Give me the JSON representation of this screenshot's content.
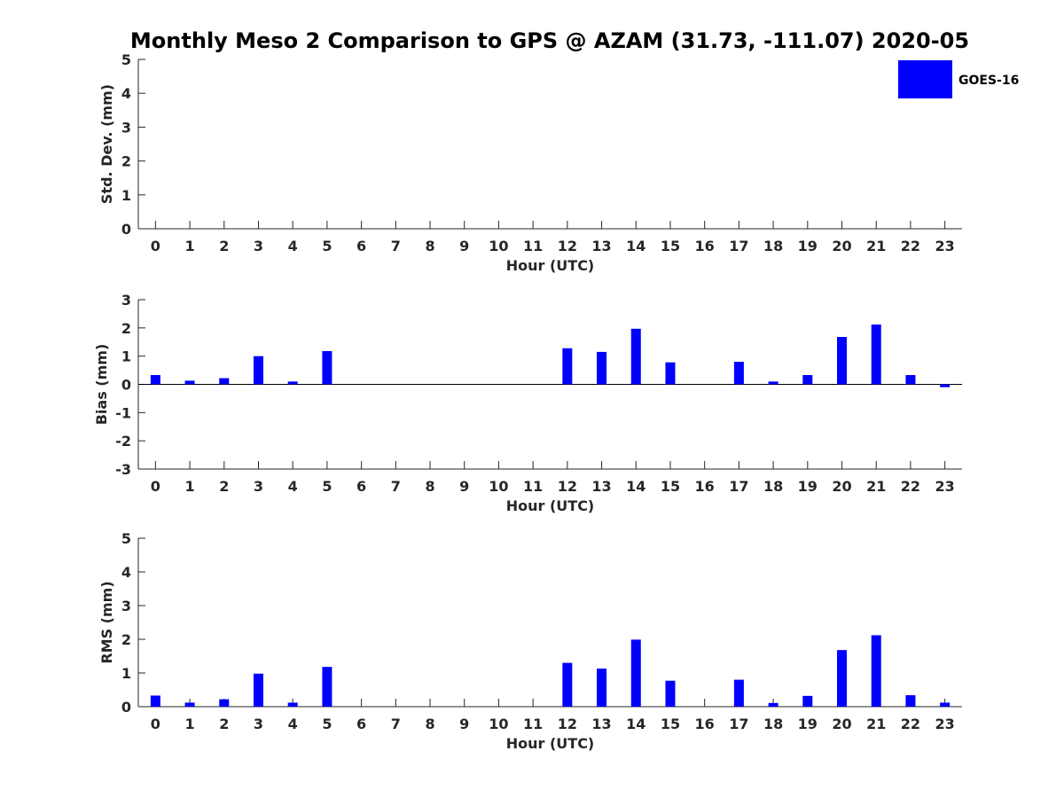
{
  "figure": {
    "title": "Monthly Meso 2 Comparison to GPS @ AZAM (31.73, -111.07) 2020-05",
    "legend": [
      {
        "label": "GOES-16",
        "color": "#0000ff"
      }
    ]
  },
  "chart_data": [
    {
      "type": "bar",
      "xlabel": "Hour (UTC)",
      "ylabel": "Std. Dev. (mm)",
      "ylim": [
        0,
        5
      ],
      "yticks": [
        0,
        1,
        2,
        3,
        4,
        5
      ],
      "categories": [
        0,
        1,
        2,
        3,
        4,
        5,
        6,
        7,
        8,
        9,
        10,
        11,
        12,
        13,
        14,
        15,
        16,
        17,
        18,
        19,
        20,
        21,
        22,
        23
      ],
      "series": [
        {
          "name": "GOES-16",
          "color": "#0000ff",
          "values": [
            0,
            0,
            0,
            0,
            0,
            0,
            0,
            0,
            0,
            0,
            0,
            0,
            0,
            0,
            0,
            0,
            0,
            0,
            0,
            0,
            0,
            0,
            0,
            0
          ]
        }
      ],
      "legend_position": "top-right"
    },
    {
      "type": "bar",
      "xlabel": "Hour (UTC)",
      "ylabel": "Bias (mm)",
      "ylim": [
        -3,
        3
      ],
      "yticks": [
        -3,
        -2,
        -1,
        0,
        1,
        2,
        3
      ],
      "zero_line": true,
      "categories": [
        0,
        1,
        2,
        3,
        4,
        5,
        6,
        7,
        8,
        9,
        10,
        11,
        12,
        13,
        14,
        15,
        16,
        17,
        18,
        19,
        20,
        21,
        22,
        23
      ],
      "series": [
        {
          "name": "GOES-16",
          "color": "#0000ff",
          "values": [
            0.33,
            0.13,
            0.22,
            1.0,
            0.1,
            1.18,
            null,
            null,
            null,
            null,
            null,
            null,
            1.28,
            1.15,
            1.97,
            0.78,
            null,
            0.8,
            0.1,
            0.33,
            1.68,
            2.12,
            0.33,
            -0.1
          ]
        }
      ]
    },
    {
      "type": "bar",
      "xlabel": "Hour (UTC)",
      "ylabel": "RMS (mm)",
      "ylim": [
        0,
        5
      ],
      "yticks": [
        0,
        1,
        2,
        3,
        4,
        5
      ],
      "categories": [
        0,
        1,
        2,
        3,
        4,
        5,
        6,
        7,
        8,
        9,
        10,
        11,
        12,
        13,
        14,
        15,
        16,
        17,
        18,
        19,
        20,
        21,
        22,
        23
      ],
      "series": [
        {
          "name": "GOES-16",
          "color": "#0000ff",
          "values": [
            0.33,
            0.12,
            0.22,
            0.98,
            0.12,
            1.18,
            null,
            null,
            null,
            null,
            null,
            null,
            1.3,
            1.13,
            1.99,
            0.77,
            null,
            0.8,
            0.11,
            0.32,
            1.68,
            2.12,
            0.34,
            0.12
          ]
        }
      ]
    }
  ]
}
